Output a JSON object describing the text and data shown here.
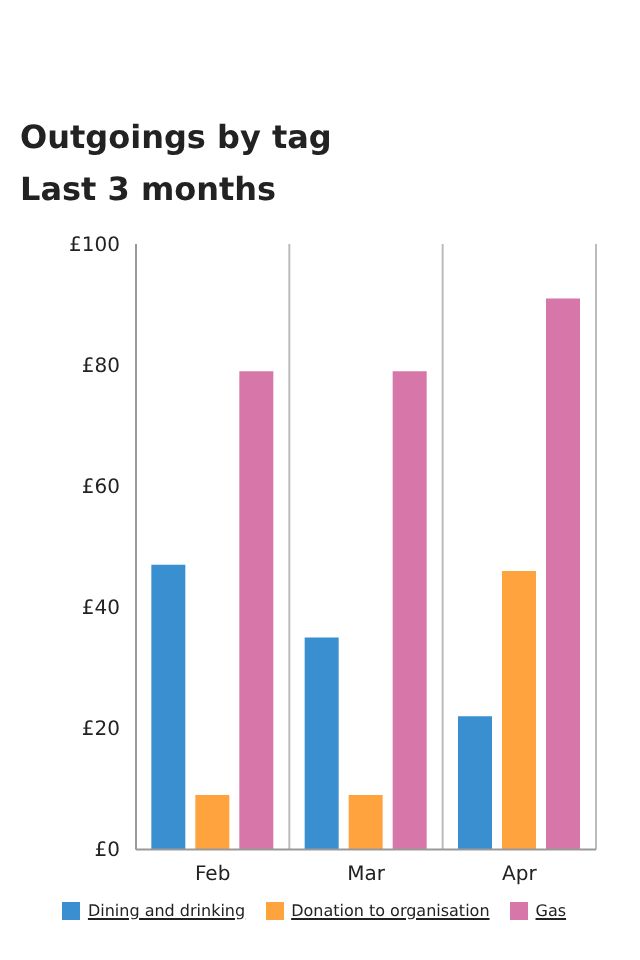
{
  "chart_data": {
    "type": "bar",
    "title": "Outgoings by tag",
    "subtitle": "Last 3 months",
    "categories": [
      "Feb",
      "Mar",
      "Apr"
    ],
    "series": [
      {
        "name": "Dining and drinking",
        "color": "#3a8fd0",
        "values": [
          47,
          35,
          22
        ]
      },
      {
        "name": "Donation to organisation",
        "color": "#ffa33f",
        "values": [
          9,
          9,
          46
        ]
      },
      {
        "name": "Gas",
        "color": "#d676a9",
        "values": [
          79,
          79,
          91
        ]
      }
    ],
    "ylim": [
      0,
      100
    ],
    "yticks": [
      {
        "value": 0,
        "label": "£0"
      },
      {
        "value": 20,
        "label": "£20"
      },
      {
        "value": 40,
        "label": "£40"
      },
      {
        "value": 60,
        "label": "£60"
      },
      {
        "value": 80,
        "label": "£80"
      },
      {
        "value": 100,
        "label": "£100"
      }
    ],
    "grid": "x",
    "legend": "bottom"
  }
}
